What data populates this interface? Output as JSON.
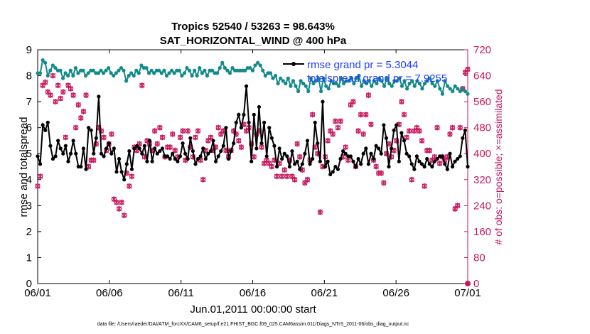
{
  "colors": {
    "rmse": "#000000",
    "spread": "#138a8a",
    "obs": "#c8175f",
    "legend_text": "#1f3fff",
    "grid": "#d9d9d9"
  },
  "chart_data": {
    "type": "line",
    "title_line1": "Tropics 52540 / 53263 = 98.643%",
    "title_line2": "SAT_HORIZONTAL_WIND @ 400 hPa",
    "xlabel": "Jun.01,2011 00:00:00 start",
    "ylabel_left": "rmse and totalspread",
    "ylabel_right": "# of obs: o=possible; ×=assimilated",
    "x_ticks": [
      "06/01",
      "06/06",
      "06/11",
      "06/16",
      "06/21",
      "06/26",
      "07/01"
    ],
    "xlim": [
      0,
      30
    ],
    "ylim_left": [
      0,
      9
    ],
    "y_ticks_left": [
      "0",
      "1",
      "2",
      "3",
      "4",
      "5",
      "6",
      "7",
      "8",
      "9"
    ],
    "ylim_right": [
      0,
      720
    ],
    "y_ticks_right": [
      "0",
      "80",
      "160",
      "240",
      "320",
      "400",
      "480",
      "560",
      "640",
      "720"
    ],
    "legend": [
      {
        "name": "rmse",
        "label": "rmse grand pr = 5.3044"
      },
      {
        "name": "totalspread",
        "label": "totalspread grand pr = 7.9255"
      }
    ],
    "footnote": "data file: /Users/raeder/DAI/ATM_forcXX/CAM6_setup/f.e21.FHIST_BGC.f09_025.CAM6assim.011/Diags_NTrS_2011-06/obs_diag_output.nc",
    "series": [
      {
        "name": "rmse",
        "axis": "left",
        "values": [
          4.9,
          4.6,
          6.1,
          5.9,
          6.2,
          5.3,
          4.8,
          4.9,
          5.5,
          5.2,
          5.0,
          5.3,
          4.7,
          5.0,
          5.5,
          5.0,
          4.5,
          4.5,
          5.2,
          4.4,
          6.0,
          5.9,
          5.0,
          5.6,
          7.2,
          5.0,
          4.9,
          5.2,
          5.4,
          5.0,
          5.2,
          4.3,
          4.8,
          4.3,
          4.0,
          4.6,
          5.1,
          4.4,
          5.2,
          5.3,
          5.2,
          5.0,
          5.3,
          4.7,
          5.5,
          4.7,
          5.2,
          5.0,
          5.1,
          5.2,
          4.9,
          4.9,
          4.8,
          5.0,
          4.8,
          4.7,
          4.9,
          5.4,
          5.0,
          4.8,
          5.6,
          5.1,
          4.6,
          4.8,
          4.9,
          5.2,
          4.8,
          5.0,
          5.1,
          5.5,
          4.7,
          4.9,
          5.1,
          5.3,
          6.0,
          4.8,
          5.1,
          5.4,
          6.2,
          6.5,
          6.0,
          6.5,
          7.6,
          6.2,
          4.7,
          6.5,
          5.2,
          6.8,
          5.4,
          6.2,
          4.9,
          6.0,
          5.6,
          5.3,
          4.5,
          5.2,
          4.8,
          5.0,
          4.9,
          4.5,
          5.1,
          4.6,
          4.7,
          4.4,
          4.6,
          5.0,
          5.5,
          4.6,
          4.8,
          6.2,
          5.4,
          4.7,
          7.0,
          4.5,
          4.7,
          4.2,
          4.3,
          4.5,
          4.4,
          4.8,
          5.1,
          5.0,
          4.9,
          4.9,
          4.7,
          4.5,
          4.8,
          4.6,
          5.0,
          5.2,
          4.6,
          5.0,
          4.8,
          5.3,
          5.2,
          5.0,
          6.1,
          5.6,
          4.5,
          5.2,
          5.9,
          6.1,
          4.7,
          5.8,
          5.5,
          5.0,
          4.9,
          4.6,
          4.4,
          4.9,
          4.7,
          4.6,
          4.5,
          4.8,
          4.6,
          4.5,
          4.7,
          4.8,
          4.9,
          4.9,
          4.6,
          4.4,
          5.0,
          4.5,
          4.7,
          4.8,
          4.9,
          5.6,
          5.9,
          4.5
        ]
      },
      {
        "name": "totalspread",
        "axis": "left",
        "values": [
          8.1,
          8.1,
          8.6,
          8.5,
          8.0,
          8.2,
          8.4,
          8.3,
          8.2,
          8.2,
          7.9,
          8.1,
          8.0,
          8.2,
          8.0,
          8.3,
          8.1,
          8.2,
          8.2,
          8.0,
          8.1,
          8.2,
          8.2,
          8.1,
          8.1,
          8.2,
          8.1,
          8.2,
          8.3,
          8.1,
          8.0,
          8.1,
          8.2,
          8.3,
          8.2,
          7.8,
          8.0,
          8.1,
          8.0,
          8.2,
          8.1,
          8.4,
          8.3,
          8.3,
          8.1,
          8.2,
          8.1,
          8.2,
          8.2,
          8.1,
          8.2,
          8.0,
          8.1,
          8.2,
          8.1,
          8.2,
          8.2,
          8.0,
          8.1,
          8.3,
          8.2,
          8.0,
          8.2,
          8.0,
          8.3,
          8.1,
          8.2,
          8.0,
          8.2,
          8.2,
          8.1,
          8.1,
          8.3,
          8.5,
          8.3,
          8.2,
          8.1,
          8.3,
          8.2,
          8.2,
          8.2,
          8.2,
          8.2,
          8.3,
          8.3,
          8.2,
          8.4,
          8.5,
          8.4,
          8.2,
          8.0,
          8.1,
          8.1,
          7.9,
          8.0,
          7.7,
          7.9,
          7.8,
          7.7,
          7.9,
          7.6,
          7.8,
          7.6,
          7.4,
          7.8,
          7.7,
          7.6,
          7.4,
          7.9,
          7.7,
          7.8,
          7.9,
          7.4,
          7.9,
          7.6,
          7.5,
          7.8,
          7.7,
          7.7,
          7.6,
          7.9,
          7.7,
          7.8,
          7.8,
          7.9,
          7.7,
          7.9,
          8.0,
          7.6,
          7.8,
          7.7,
          7.8,
          7.6,
          7.8,
          7.7,
          7.9,
          7.8,
          7.6,
          7.9,
          7.7,
          7.6,
          7.8,
          7.8,
          7.9,
          7.6,
          7.8,
          7.5,
          7.7,
          7.8,
          7.6,
          7.8,
          7.7,
          7.5,
          7.7,
          7.8,
          7.9,
          7.7,
          7.6,
          7.8,
          7.5,
          7.3,
          7.8,
          7.6,
          7.5,
          7.4,
          7.6,
          7.5,
          7.4,
          7.5,
          7.4,
          7.3
        ]
      },
      {
        "name": "obs_possible",
        "axis": "right",
        "values": [
          300,
          330,
          610,
          620,
          590,
          580,
          640,
          560,
          610,
          570,
          590,
          450,
          610,
          600,
          580,
          480,
          550,
          510,
          530,
          580,
          360,
          380,
          380,
          430,
          480,
          470,
          450,
          410,
          430,
          460,
          260,
          250,
          230,
          250,
          210,
          340,
          300,
          330,
          420,
          410,
          430,
          610,
          390,
          440,
          430,
          410,
          470,
          430,
          480,
          450,
          390,
          420,
          420,
          460,
          410,
          390,
          450,
          470,
          380,
          470,
          420,
          390,
          450,
          470,
          380,
          320,
          410,
          440,
          450,
          410,
          420,
          480,
          460,
          470,
          410,
          390,
          410,
          470,
          460,
          440,
          420,
          490,
          470,
          480,
          430,
          390,
          460,
          470,
          420,
          370,
          380,
          370,
          360,
          380,
          330,
          370,
          330,
          350,
          330,
          380,
          330,
          320,
          430,
          390,
          350,
          310,
          320,
          380,
          520,
          420,
          400,
          220,
          360,
          390,
          440,
          470,
          460,
          500,
          480,
          500,
          390,
          420,
          380,
          550,
          560,
          360,
          470,
          520,
          460,
          520,
          580,
          490,
          380,
          360,
          340,
          340,
          310,
          400,
          430,
          390,
          410,
          440,
          490,
          560,
          520,
          450,
          470,
          320,
          470,
          480,
          470,
          440,
          300,
          410,
          410,
          380,
          390,
          480,
          370,
          390,
          380,
          390,
          460,
          480,
          230,
          240,
          480,
          600,
          650,
          660
        ]
      }
    ]
  }
}
